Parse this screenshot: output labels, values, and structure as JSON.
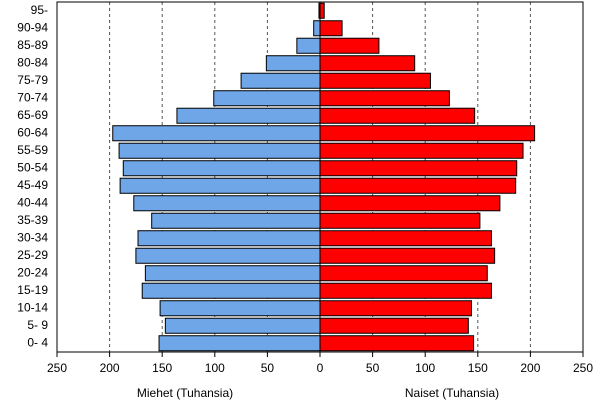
{
  "chart_data": {
    "type": "pyramid",
    "categories": [
      "95-",
      "90-94",
      "85-89",
      "80-84",
      "75-79",
      "70-74",
      "65-69",
      "60-64",
      "55-59",
      "50-54",
      "45-49",
      "40-44",
      "35-39",
      "30-34",
      "25-29",
      "20-24",
      "15-19",
      "10-14",
      "5- 9",
      "0- 4"
    ],
    "series": [
      {
        "name": "Miehet (Tuhansia)",
        "color": "#6ea6e8",
        "side": "left",
        "values": [
          1,
          6,
          22,
          51,
          75,
          101,
          136,
          197,
          191,
          187,
          190,
          177,
          160,
          173,
          175,
          166,
          169,
          152,
          147,
          153
        ]
      },
      {
        "name": "Naiset (Tuhansia)",
        "color": "#ff0000",
        "side": "right",
        "values": [
          4,
          21,
          56,
          90,
          105,
          123,
          147,
          204,
          193,
          187,
          186,
          171,
          152,
          163,
          166,
          159,
          163,
          144,
          141,
          146
        ]
      }
    ],
    "xlim": [
      -250,
      250
    ],
    "xticks": [
      {
        "value": -250,
        "label": "250"
      },
      {
        "value": -200,
        "label": "200"
      },
      {
        "value": -150,
        "label": "150"
      },
      {
        "value": -100,
        "label": "100"
      },
      {
        "value": -50,
        "label": "50"
      },
      0,
      50,
      100,
      150,
      200,
      250
    ],
    "grid": true
  }
}
